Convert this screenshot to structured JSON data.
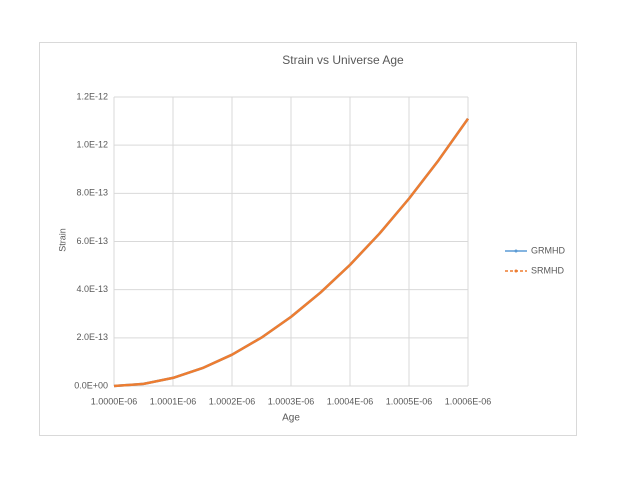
{
  "chart_data": {
    "type": "line",
    "title": "Strain vs Universe Age",
    "x_label": "Age",
    "y_label": "Strain",
    "x": [
      1e-06,
      1.00005e-06,
      1.0001e-06,
      1.00015e-06,
      1.0002e-06,
      1.00025e-06,
      1.0003e-06,
      1.00035e-06,
      1.0004e-06,
      1.00045e-06,
      1.0005e-06,
      1.00055e-06,
      1.0006e-06
    ],
    "series": [
      {
        "name": "GRMHD",
        "color": "#5b9bd5",
        "values": [
          0,
          8.7e-15,
          3.37e-14,
          7.44e-14,
          1.3e-13,
          2.01e-13,
          2.87e-13,
          3.88e-13,
          5.03e-13,
          6.33e-13,
          7.78e-13,
          9.37e-13,
          1.11e-12
        ]
      },
      {
        "name": "SRMHD",
        "color": "#ed7d31",
        "values": [
          0,
          8.7e-15,
          3.37e-14,
          7.44e-14,
          1.3e-13,
          2.01e-13,
          2.87e-13,
          3.88e-13,
          5.03e-13,
          6.33e-13,
          7.78e-13,
          9.37e-13,
          1.11e-12
        ]
      }
    ],
    "xlim": [
      1e-06,
      1.0006e-06
    ],
    "xticks": [
      {
        "value": 1e-06,
        "label": "1.0000E-06"
      },
      {
        "value": 1.0001e-06,
        "label": "1.0001E-06"
      },
      {
        "value": 1.0002e-06,
        "label": "1.0002E-06"
      },
      {
        "value": 1.0003e-06,
        "label": "1.0003E-06"
      },
      {
        "value": 1.0004e-06,
        "label": "1.0004E-06"
      },
      {
        "value": 1.0005e-06,
        "label": "1.0005E-06"
      },
      {
        "value": 1.0006e-06,
        "label": "1.0006E-06"
      }
    ],
    "ylim": [
      0,
      1.2e-12
    ],
    "yticks": [
      {
        "value": 0,
        "label": "0.0E+00"
      },
      {
        "value": 2e-13,
        "label": "2.0E-13"
      },
      {
        "value": 4e-13,
        "label": "4.0E-13"
      },
      {
        "value": 6e-13,
        "label": "6.0E-13"
      },
      {
        "value": 8e-13,
        "label": "8.0E-13"
      },
      {
        "value": 1e-12,
        "label": "1.0E-12"
      },
      {
        "value": 1.2e-12,
        "label": "1.2E-12"
      }
    ],
    "grid": true,
    "legend": "right"
  }
}
